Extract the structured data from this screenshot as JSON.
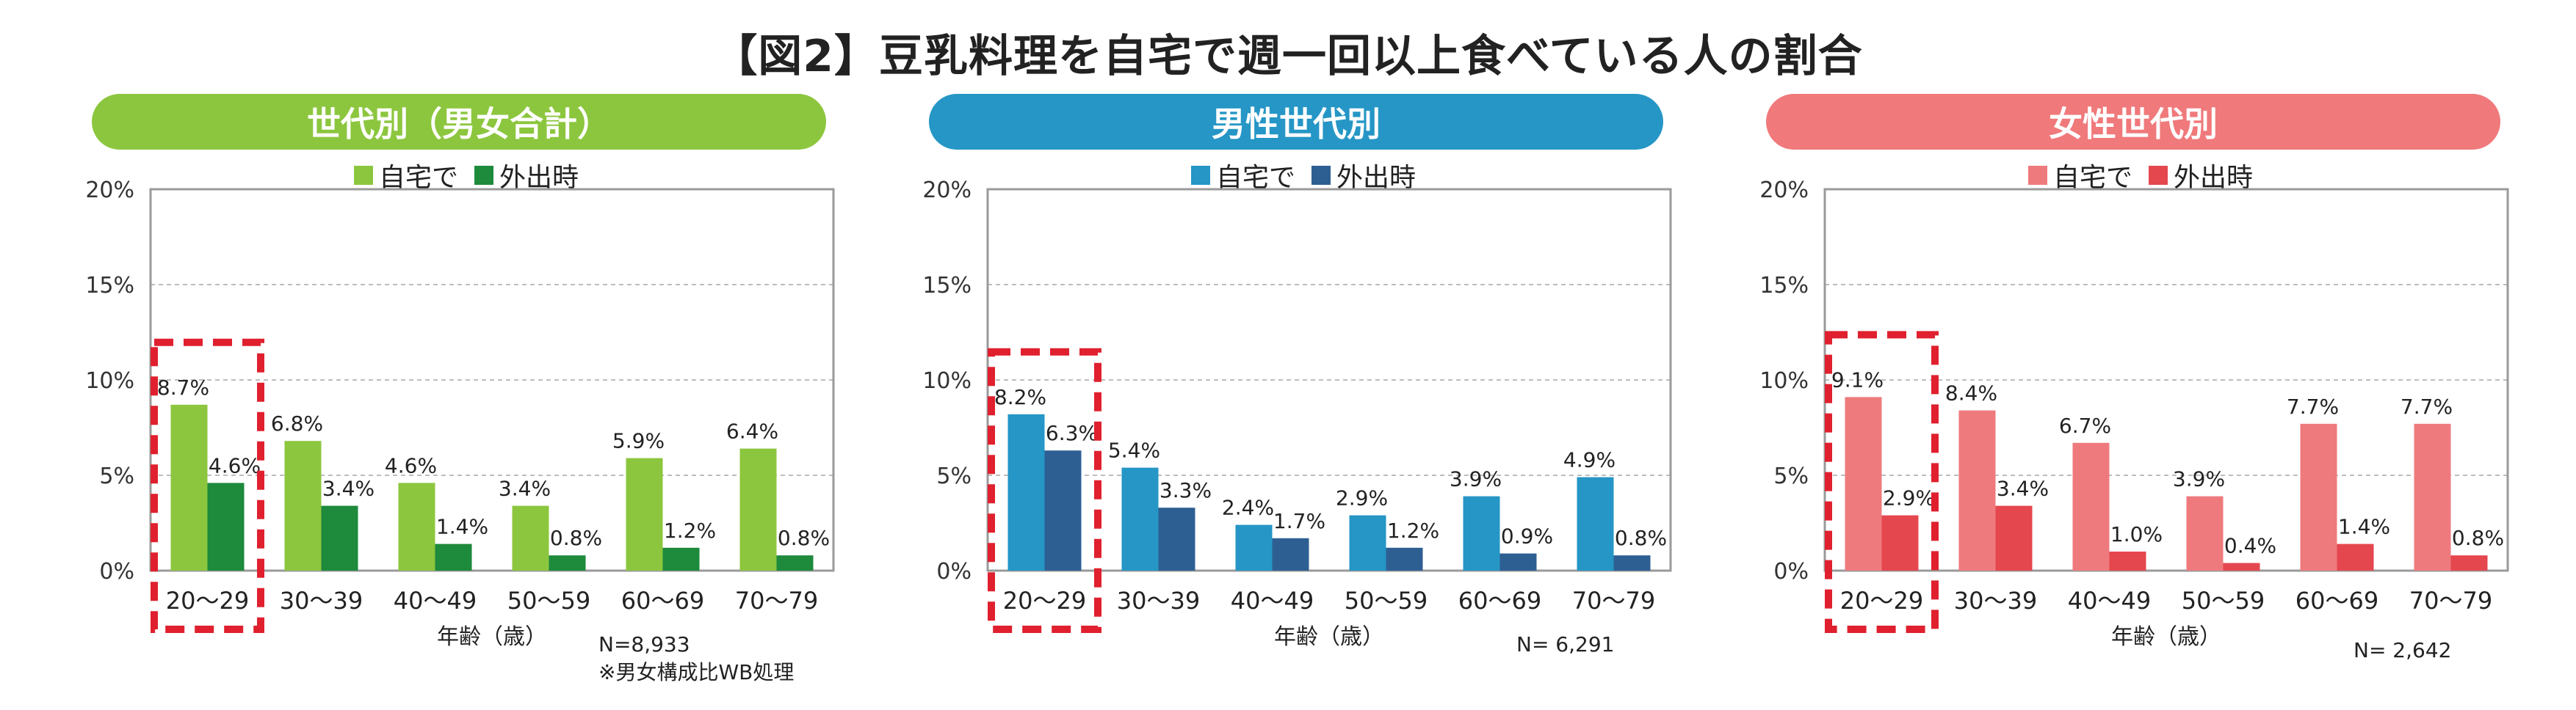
{
  "title": "【図2】豆乳料理を自宅で週一回以上食べている人の割合",
  "chart_data": [
    {
      "type": "bar",
      "header": "世代別（男女合計）",
      "header_color": "#8cc63e",
      "series": [
        {
          "name": "自宅で",
          "color": "#8cc63e",
          "values": [
            8.7,
            6.8,
            4.6,
            3.4,
            5.9,
            6.4
          ]
        },
        {
          "name": "外出時",
          "color": "#1d8a3c",
          "values": [
            4.6,
            3.4,
            1.4,
            0.8,
            1.2,
            0.8
          ]
        }
      ],
      "categories": [
        "20～29",
        "30～39",
        "40～49",
        "50～59",
        "60～69",
        "70～79"
      ],
      "xlabel": "年齢（歳）",
      "yticks": [
        "0%",
        "5%",
        "10%",
        "15%",
        "20%"
      ],
      "ylim": [
        0,
        20
      ],
      "highlight_category": "20～29",
      "notes": [
        "N=8,933",
        "※男女構成比WB処理"
      ]
    },
    {
      "type": "bar",
      "header": "男性世代別",
      "header_color": "#2596c5",
      "series": [
        {
          "name": "自宅で",
          "color": "#2596c5",
          "values": [
            8.2,
            5.4,
            2.4,
            2.9,
            3.9,
            4.9
          ]
        },
        {
          "name": "外出時",
          "color": "#2e5f93",
          "values": [
            6.3,
            3.3,
            1.7,
            1.2,
            0.9,
            0.8
          ]
        }
      ],
      "categories": [
        "20～29",
        "30～39",
        "40～49",
        "50～59",
        "60～69",
        "70～79"
      ],
      "xlabel": "年齢（歳）",
      "yticks": [
        "0%",
        "5%",
        "10%",
        "15%",
        "20%"
      ],
      "ylim": [
        0,
        20
      ],
      "highlight_category": "20～29",
      "notes": [
        "N= 6,291"
      ]
    },
    {
      "type": "bar",
      "header": "女性世代別",
      "header_color": "#f0797b",
      "series": [
        {
          "name": "自宅で",
          "color": "#ef7a7d",
          "values": [
            9.1,
            8.4,
            6.7,
            3.9,
            7.7,
            7.7
          ]
        },
        {
          "name": "外出時",
          "color": "#e5474f",
          "values": [
            2.9,
            3.4,
            1.0,
            0.4,
            1.4,
            0.8
          ]
        }
      ],
      "categories": [
        "20～29",
        "30～39",
        "40～49",
        "50～59",
        "60～69",
        "70～79"
      ],
      "xlabel": "年齢（歳）",
      "yticks": [
        "0%",
        "5%",
        "10%",
        "15%",
        "20%"
      ],
      "ylim": [
        0,
        20
      ],
      "highlight_category": "20～29",
      "notes": [
        "N= 2,642"
      ]
    }
  ]
}
